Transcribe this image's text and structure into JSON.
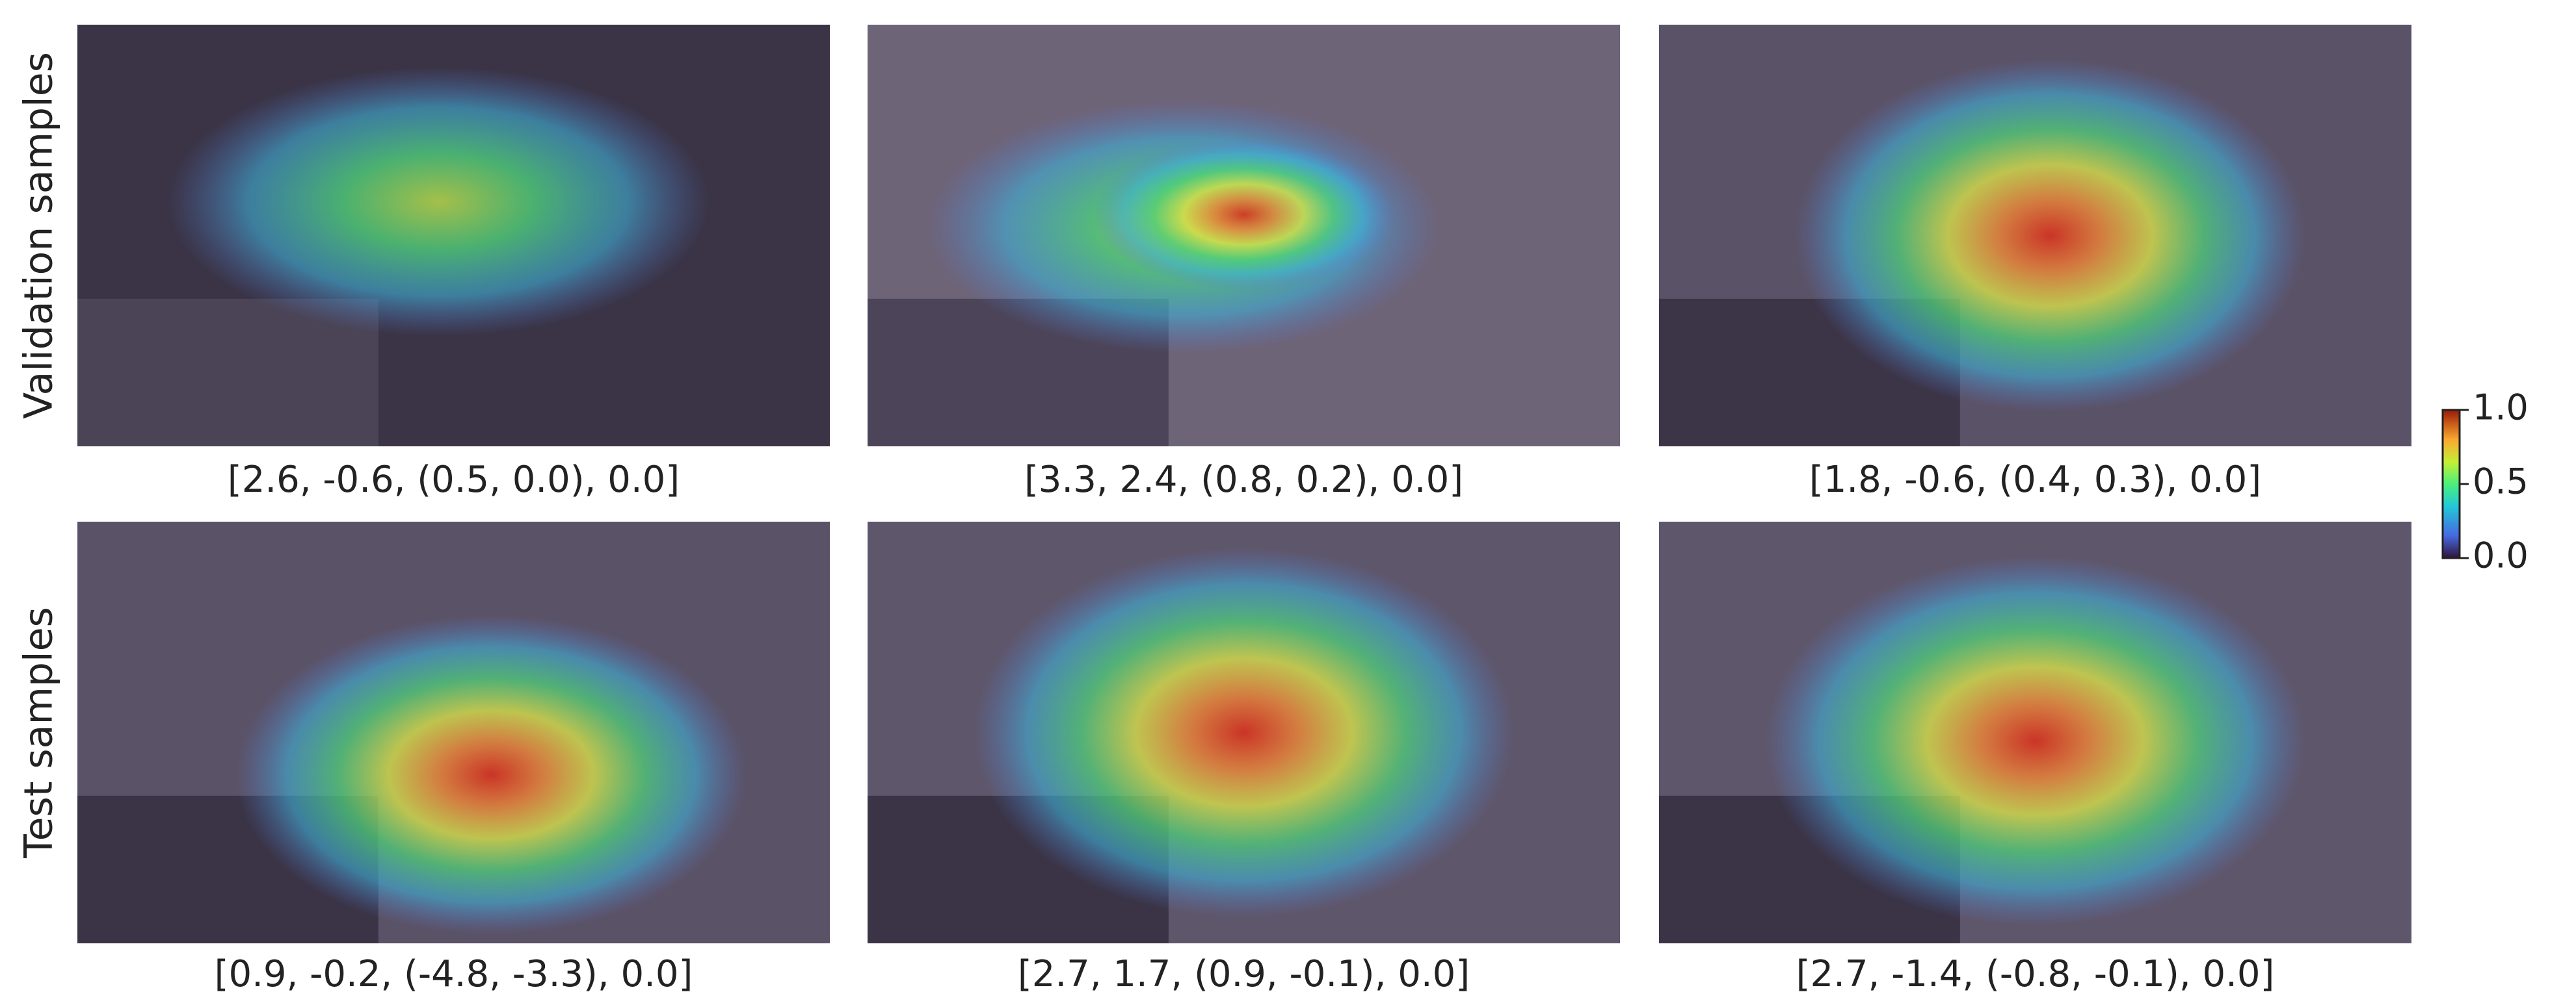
{
  "rows": [
    {
      "label": "Validation samples",
      "panels": [
        {
          "caption": "[2.6, -0.6, (0.5, 0.0), 0.0]"
        },
        {
          "caption": "[3.3, 2.4, (0.8, 0.2), 0.0]"
        },
        {
          "caption": "[1.8, -0.6, (0.4, 0.3), 0.0]"
        }
      ]
    },
    {
      "label": "Test samples",
      "panels": [
        {
          "caption": "[0.9, -0.2, (-4.8, -3.3), 0.0]"
        },
        {
          "caption": "[2.7, 1.7, (0.9, -0.1), 0.0]"
        },
        {
          "caption": "[2.7, -1.4, (-0.8, -0.1), 0.0]"
        }
      ]
    }
  ],
  "colorbar": {
    "lim": [
      0,
      1
    ],
    "ticks": [
      {
        "value": 0,
        "label": "0.0"
      },
      0.5,
      {
        "value": 1,
        "label": "1.0"
      }
    ]
  }
}
